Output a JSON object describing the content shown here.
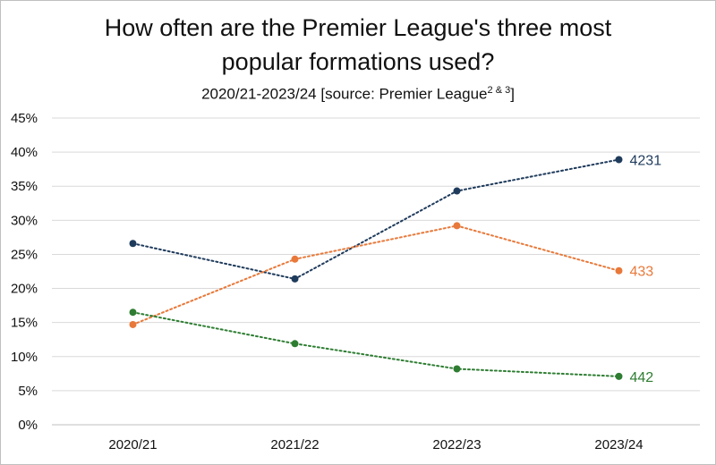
{
  "chart_data": {
    "type": "line",
    "title_line1": "How often are the Premier League's three most",
    "title_line2": "popular formations used?",
    "subtitle_main": "2020/21-2023/24 [source: Premier League",
    "subtitle_sup": "2 & 3",
    "subtitle_end": "]",
    "categories": [
      "2020/21",
      "2021/22",
      "2022/23",
      "2023/24"
    ],
    "ylim": [
      0,
      45
    ],
    "yticks": [
      0,
      5,
      10,
      15,
      20,
      25,
      30,
      35,
      40,
      45
    ],
    "ytick_labels": [
      "0%",
      "5%",
      "10%",
      "15%",
      "20%",
      "25%",
      "30%",
      "35%",
      "40%",
      "45%"
    ],
    "grid": true,
    "series": [
      {
        "name": "4231",
        "color": "#1f3b5c",
        "values": [
          26.6,
          21.4,
          34.3,
          38.9
        ]
      },
      {
        "name": "433",
        "color": "#e8793a",
        "values": [
          14.7,
          24.3,
          29.2,
          22.6
        ]
      },
      {
        "name": "442",
        "color": "#2e7d32",
        "values": [
          16.5,
          11.9,
          8.2,
          7.1
        ]
      }
    ]
  }
}
